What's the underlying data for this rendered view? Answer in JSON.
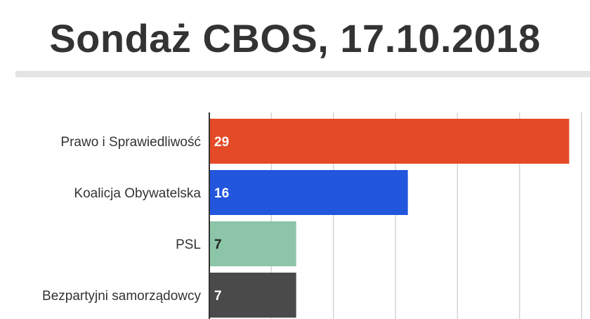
{
  "title": "Sondaż CBOS, 17.10.2018",
  "chart_data": {
    "type": "bar",
    "orientation": "horizontal",
    "title": "Sondaż CBOS, 17.10.2018",
    "categories": [
      "Prawo i Sprawiedliwość",
      "Koalicja Obywatelska",
      "PSL",
      "Bezpartyjni samorządowcy"
    ],
    "values": [
      29,
      16,
      7,
      7
    ],
    "colors": [
      "#e44a25",
      "#2156dd",
      "#8cc5a7",
      "#4a4a4a"
    ],
    "label_colors": [
      "#ffffff",
      "#ffffff",
      "#222222",
      "#ffffff"
    ],
    "xlim": [
      0,
      30
    ],
    "grid": true,
    "grid_color": "#d4d4d4",
    "xlabel": "",
    "ylabel": ""
  }
}
